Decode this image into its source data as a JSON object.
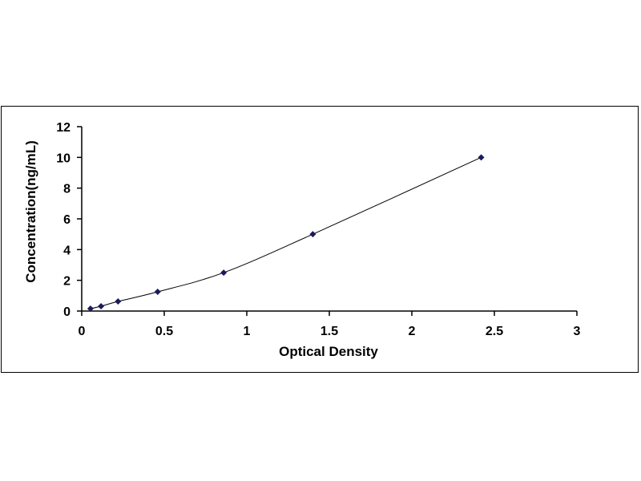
{
  "chart_data": {
    "type": "scatter",
    "title": "",
    "xlabel": "Optical Density",
    "ylabel": "Concentration(ng/mL)",
    "xlim": [
      0,
      3
    ],
    "ylim": [
      0,
      12
    ],
    "xticks": [
      "0",
      "0.5",
      "1",
      "1.5",
      "2",
      "2.5",
      "3"
    ],
    "yticks": [
      "0",
      "2",
      "4",
      "6",
      "8",
      "10",
      "12"
    ],
    "grid": false,
    "marker_color": "#1a1a5c",
    "line_color": "#000000",
    "x": [
      0.053,
      0.117,
      0.22,
      0.46,
      0.86,
      1.4,
      2.42
    ],
    "y": [
      0.156,
      0.312,
      0.625,
      1.25,
      2.5,
      5,
      10
    ],
    "trendline": "smooth curve through points"
  }
}
